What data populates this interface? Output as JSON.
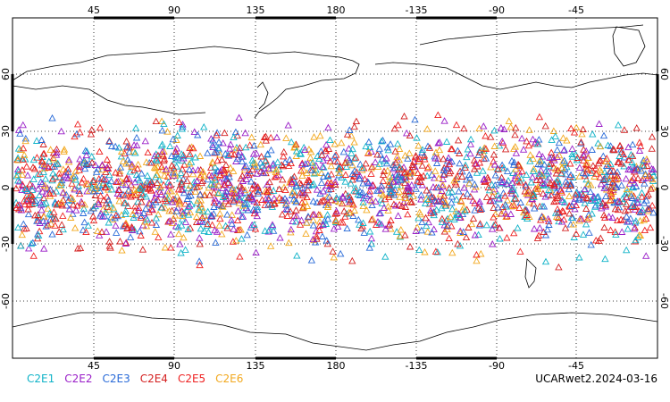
{
  "map": {
    "projection": "cylindrical",
    "center_longitude": 180,
    "lon_tick_labels": [
      "45",
      "90",
      "135",
      "180",
      "-135",
      "-90",
      "-45"
    ],
    "lat_tick_labels": [
      "60",
      "30",
      "0",
      "-30",
      "-60"
    ],
    "grid": "dotted",
    "observation_band": {
      "lat_min": -45,
      "lat_max": 45
    },
    "marker_shape": "triangle-outline"
  },
  "legend": {
    "items": [
      {
        "label": "C2E1",
        "color": "#10b3c8"
      },
      {
        "label": "C2E2",
        "color": "#9a1fc8"
      },
      {
        "label": "C2E3",
        "color": "#2a6bd8"
      },
      {
        "label": "C2E4",
        "color": "#d42020"
      },
      {
        "label": "C2E5",
        "color": "#ee2222"
      },
      {
        "label": "C2E6",
        "color": "#f2a81e"
      }
    ]
  },
  "stamp": "UCARwet2.2024-03-16"
}
